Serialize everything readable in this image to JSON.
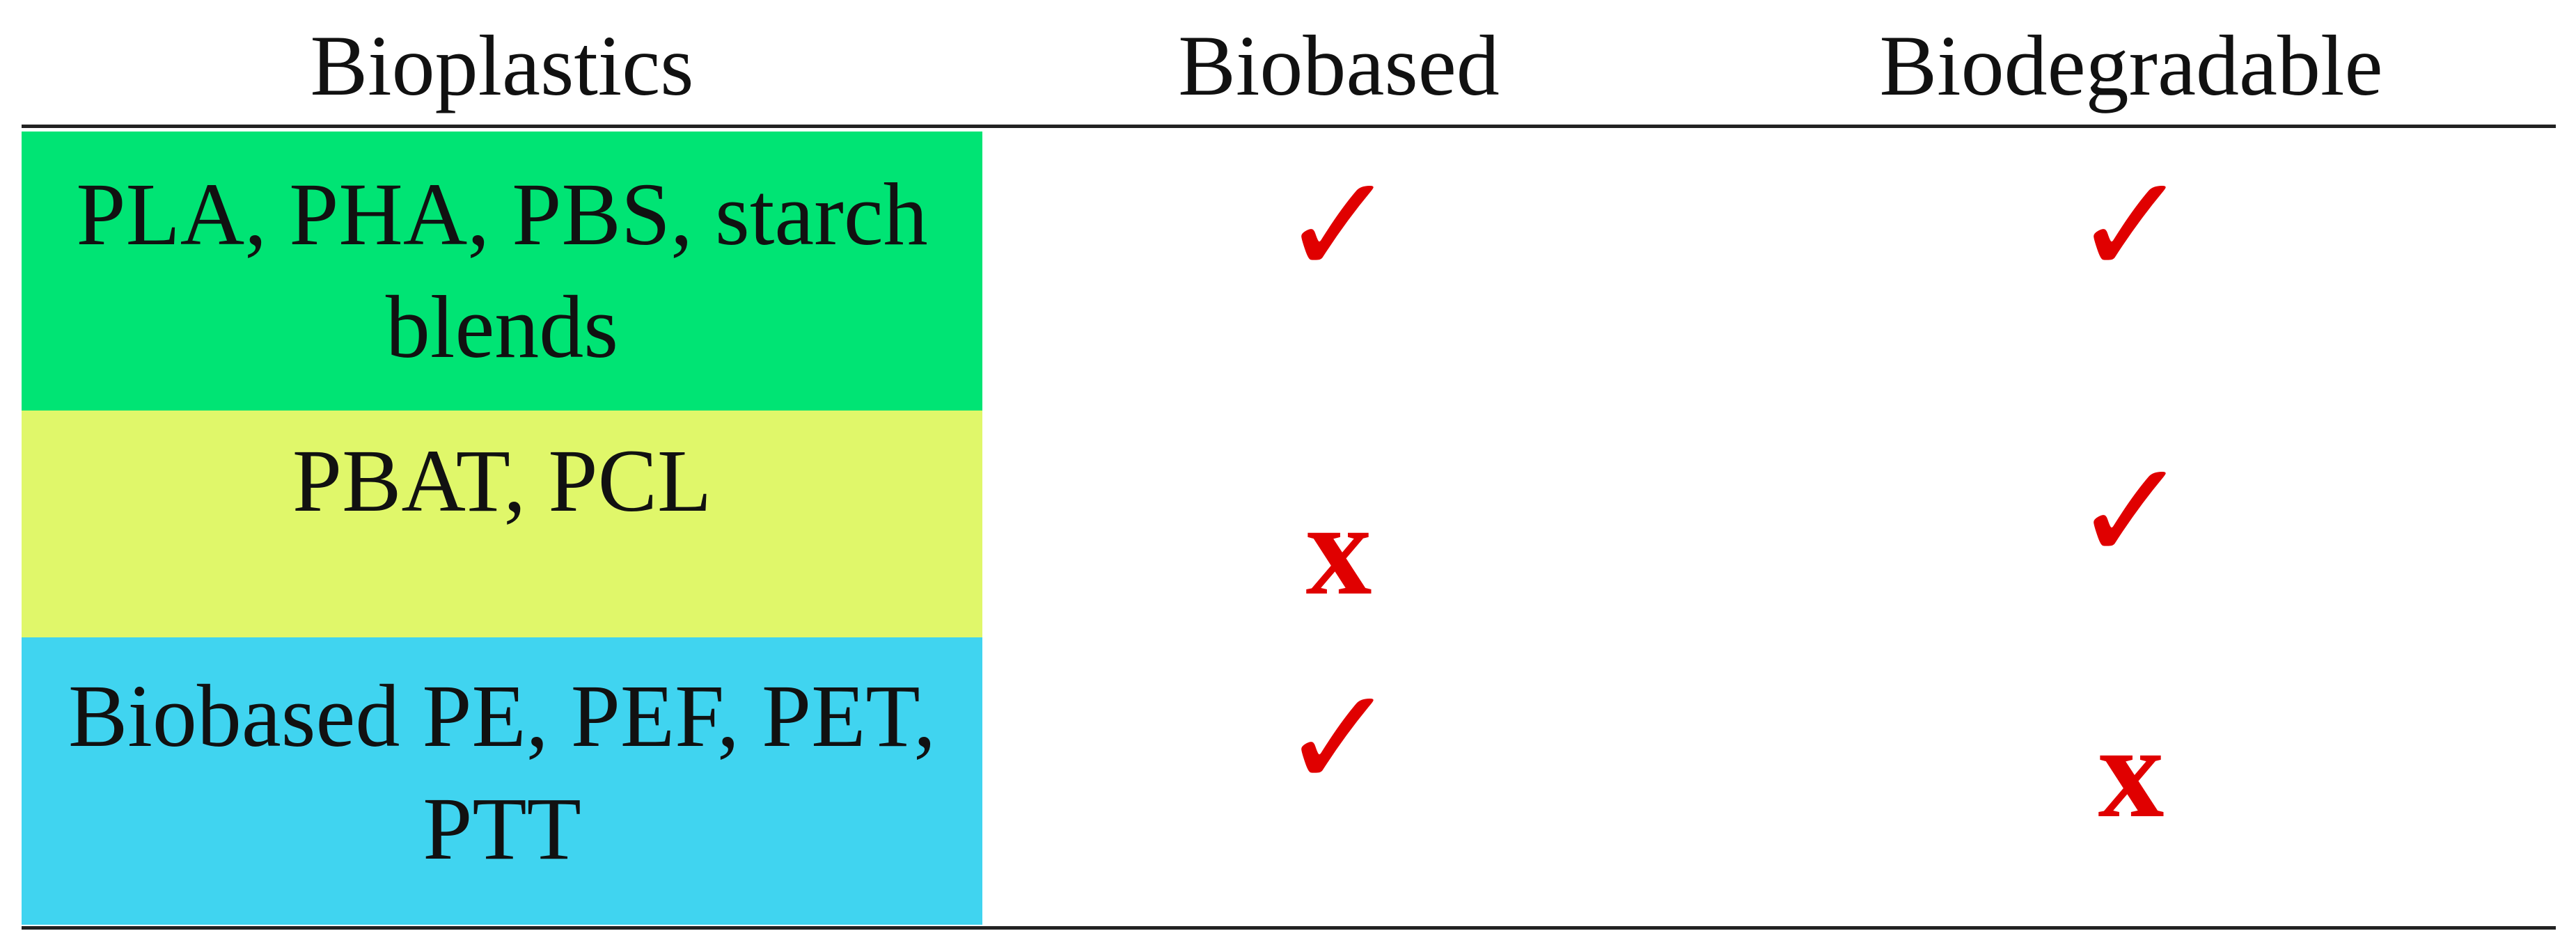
{
  "table": {
    "header": [
      "Bioplastics",
      "Biobased",
      "Biodegradable"
    ],
    "rows": [
      [
        "PLA, PHA, PBS, starch blends",
        "✓",
        "✓"
      ],
      [
        "PBAT, PCL",
        "x",
        "✓"
      ],
      [
        "Biobased PE, PEF, PET, PTT",
        "✓",
        "x"
      ]
    ]
  }
}
